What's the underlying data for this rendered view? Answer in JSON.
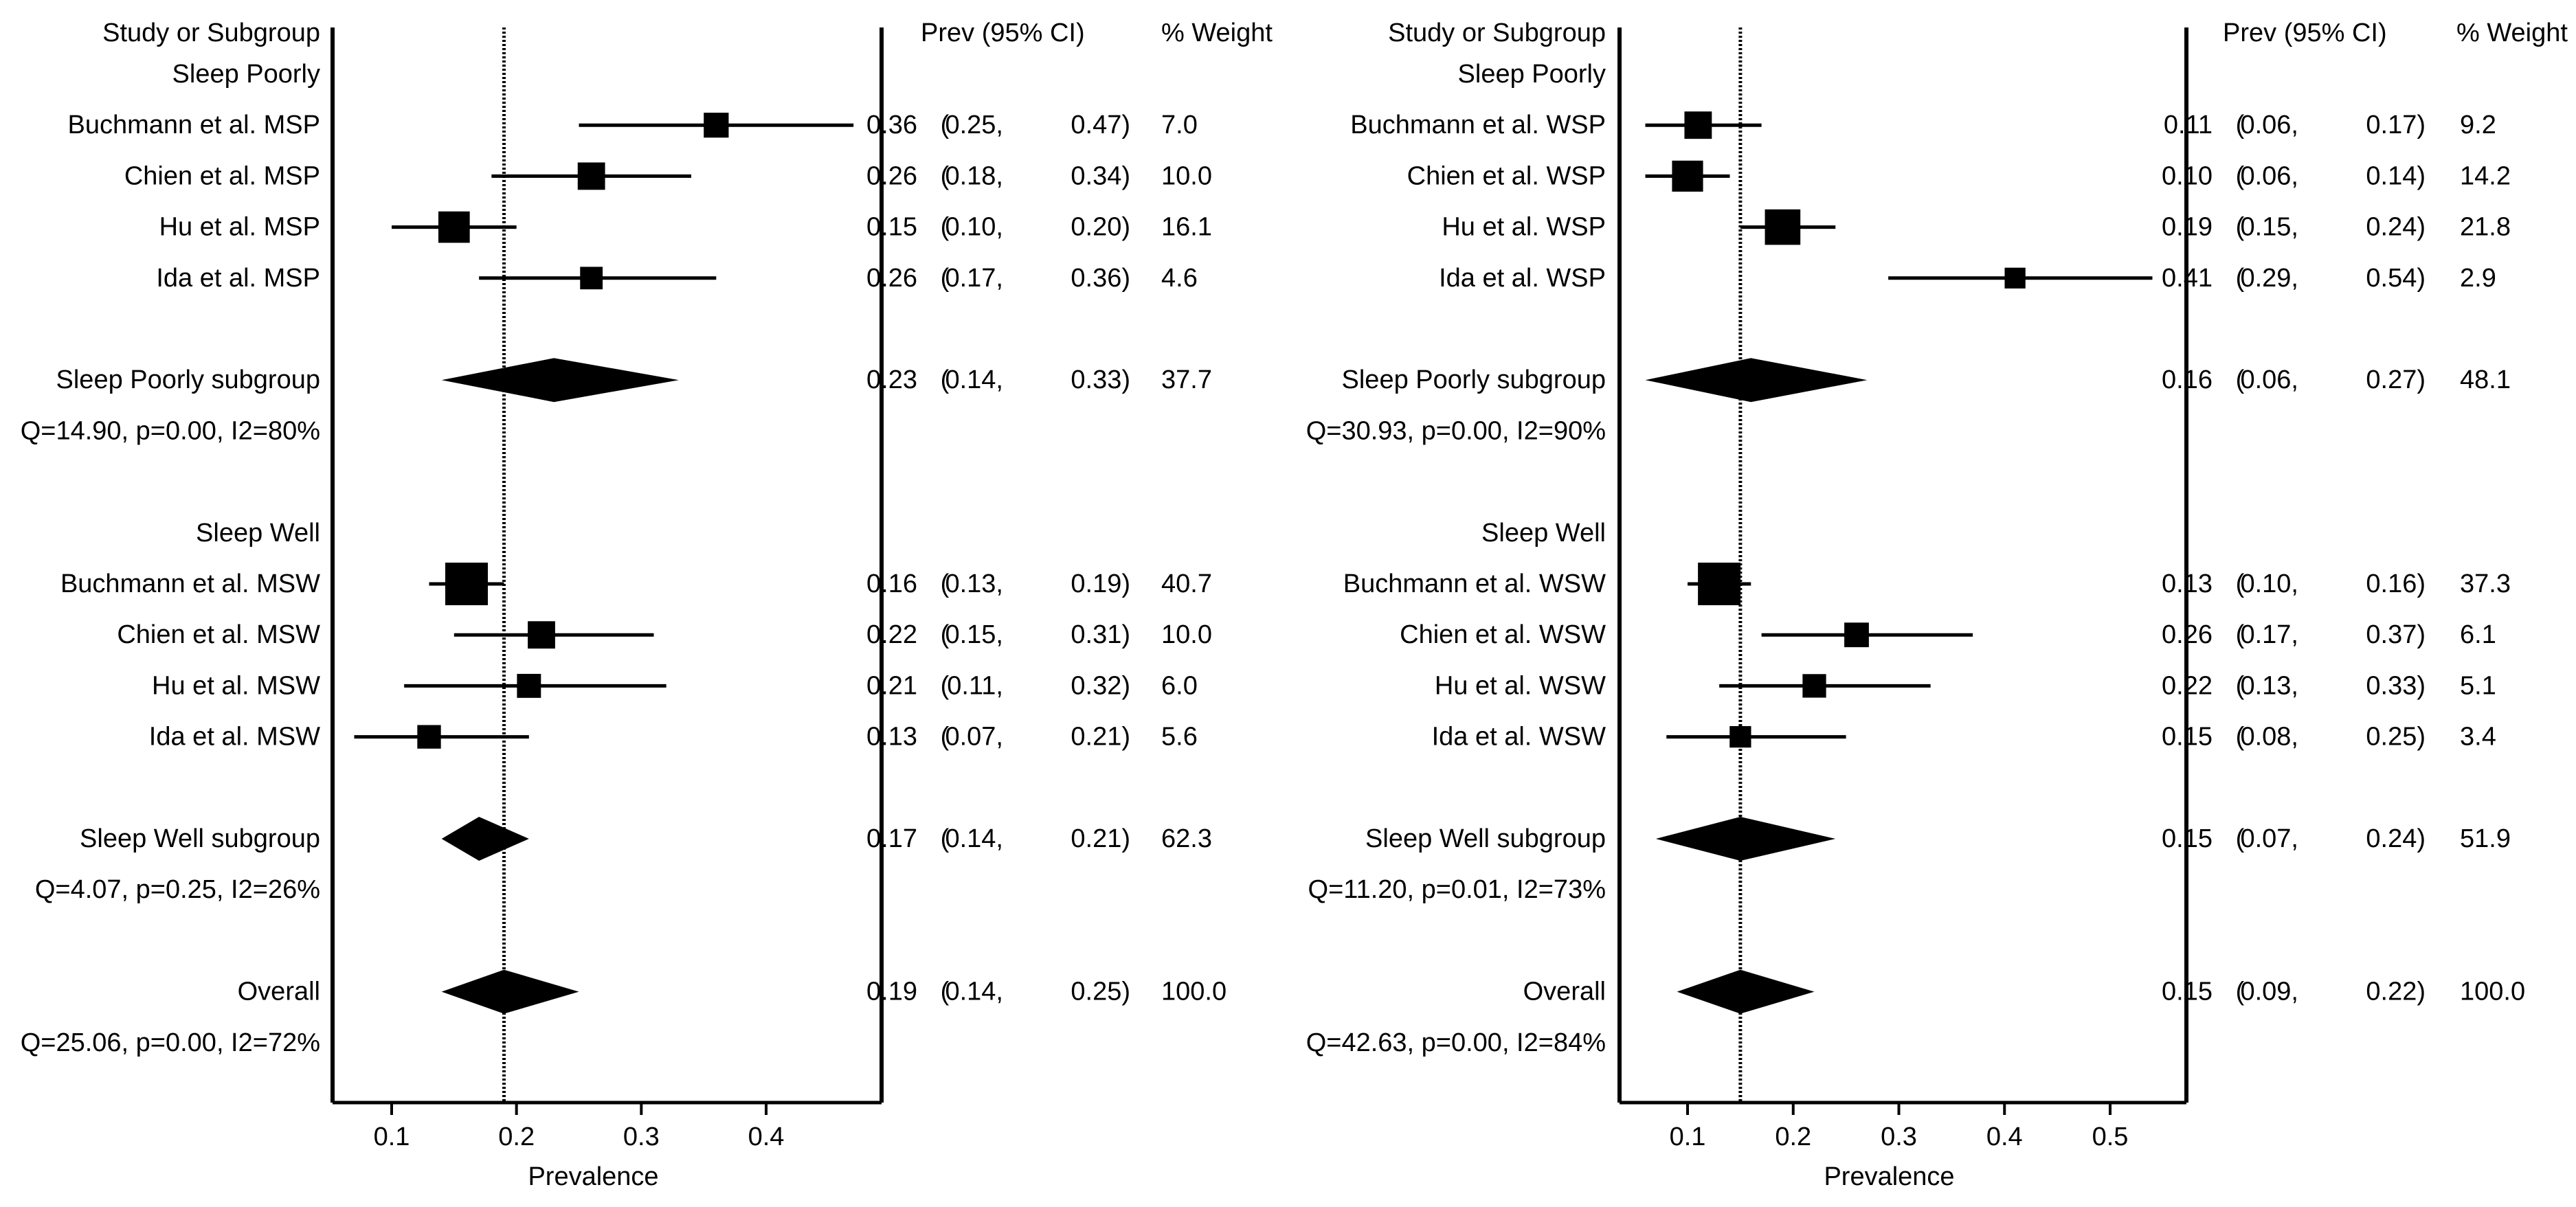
{
  "chart_data": [
    {
      "type": "forest",
      "headers": {
        "study": "Study or Subgroup",
        "estimate": "Prev (95% CI)",
        "weight": "% Weight"
      },
      "xlabel": "Prevalence",
      "xlim": [
        0.05,
        0.48
      ],
      "xticks": [
        0.1,
        0.2,
        0.3,
        0.4
      ],
      "tick_labels": [
        "0.1",
        "0.2",
        "0.3",
        "0.4"
      ],
      "reference_line": 0.19,
      "rows": [
        {
          "kind": "heading",
          "label": "Sleep Poorly"
        },
        {
          "kind": "study",
          "label": "Buchmann et al. MSP",
          "est": 0.36,
          "lo": 0.25,
          "hi": 0.47,
          "weight": 7.0,
          "est_text": "0.36",
          "lo_text": "0.25,",
          "hi_text": "0.47)",
          "weight_text": "7.0"
        },
        {
          "kind": "study",
          "label": "Chien et al. MSP",
          "est": 0.26,
          "lo": 0.18,
          "hi": 0.34,
          "weight": 10.0,
          "est_text": "0.26",
          "lo_text": "0.18,",
          "hi_text": "0.34)",
          "weight_text": "10.0"
        },
        {
          "kind": "study",
          "label": "Hu et al. MSP",
          "est": 0.15,
          "lo": 0.1,
          "hi": 0.2,
          "weight": 16.1,
          "est_text": "0.15",
          "lo_text": "0.10,",
          "hi_text": "0.20)",
          "weight_text": "16.1"
        },
        {
          "kind": "study",
          "label": "Ida et al. MSP",
          "est": 0.26,
          "lo": 0.17,
          "hi": 0.36,
          "weight": 4.6,
          "est_text": "0.26",
          "lo_text": "0.17,",
          "hi_text": "0.36)",
          "weight_text": "4.6"
        },
        {
          "kind": "blank"
        },
        {
          "kind": "summary",
          "label": "Sleep Poorly subgroup",
          "est": 0.23,
          "lo": 0.14,
          "hi": 0.33,
          "weight": 37.7,
          "est_text": "0.23",
          "lo_text": "0.14,",
          "hi_text": "0.33)",
          "weight_text": "37.7"
        },
        {
          "kind": "stat",
          "label": "Q=14.90, p=0.00, I2=80%"
        },
        {
          "kind": "blank"
        },
        {
          "kind": "heading",
          "label": "Sleep Well"
        },
        {
          "kind": "study",
          "label": "Buchmann et al. MSW",
          "est": 0.16,
          "lo": 0.13,
          "hi": 0.19,
          "weight": 40.7,
          "est_text": "0.16",
          "lo_text": "0.13,",
          "hi_text": "0.19)",
          "weight_text": "40.7"
        },
        {
          "kind": "study",
          "label": "Chien et al. MSW",
          "est": 0.22,
          "lo": 0.15,
          "hi": 0.31,
          "weight": 10.0,
          "est_text": "0.22",
          "lo_text": "0.15,",
          "hi_text": "0.31)",
          "weight_text": "10.0"
        },
        {
          "kind": "study",
          "label": "Hu et al. MSW",
          "est": 0.21,
          "lo": 0.11,
          "hi": 0.32,
          "weight": 6.0,
          "est_text": "0.21",
          "lo_text": "0.11,",
          "hi_text": "0.32)",
          "weight_text": "6.0"
        },
        {
          "kind": "study",
          "label": "Ida et al. MSW",
          "est": 0.13,
          "lo": 0.07,
          "hi": 0.21,
          "weight": 5.6,
          "est_text": "0.13",
          "lo_text": "0.07,",
          "hi_text": "0.21)",
          "weight_text": "5.6"
        },
        {
          "kind": "blank"
        },
        {
          "kind": "summary",
          "label": "Sleep Well subgroup",
          "est": 0.17,
          "lo": 0.14,
          "hi": 0.21,
          "weight": 62.3,
          "est_text": "0.17",
          "lo_text": "0.14,",
          "hi_text": "0.21)",
          "weight_text": "62.3"
        },
        {
          "kind": "stat",
          "label": "Q=4.07, p=0.25, I2=26%"
        },
        {
          "kind": "blank"
        },
        {
          "kind": "summary",
          "label": "Overall",
          "est": 0.19,
          "lo": 0.14,
          "hi": 0.25,
          "weight": 100.0,
          "est_text": "0.19",
          "lo_text": "0.14,",
          "hi_text": "0.25)",
          "weight_text": "100.0"
        },
        {
          "kind": "stat",
          "label": "Q=25.06, p=0.00, I2=72%"
        }
      ]
    },
    {
      "type": "forest",
      "headers": {
        "study": "Study or Subgroup",
        "estimate": "Prev (95% CI)",
        "weight": "% Weight"
      },
      "xlabel": "Prevalence",
      "xlim": [
        0.05,
        0.55
      ],
      "xticks": [
        0.1,
        0.2,
        0.3,
        0.4,
        0.5
      ],
      "tick_labels": [
        "0.1",
        "0.2",
        "0.3",
        "0.4",
        "0.5"
      ],
      "reference_line": 0.15,
      "rows": [
        {
          "kind": "heading",
          "label": "Sleep Poorly"
        },
        {
          "kind": "study",
          "label": "Buchmann et al. WSP",
          "est": 0.11,
          "lo": 0.06,
          "hi": 0.17,
          "weight": 9.2,
          "est_text": "0.11",
          "lo_text": "0.06,",
          "hi_text": "0.17)",
          "weight_text": "9.2"
        },
        {
          "kind": "study",
          "label": "Chien et al. WSP",
          "est": 0.1,
          "lo": 0.06,
          "hi": 0.14,
          "weight": 14.2,
          "est_text": "0.10",
          "lo_text": "0.06,",
          "hi_text": "0.14)",
          "weight_text": "14.2"
        },
        {
          "kind": "study",
          "label": "Hu et al. WSP",
          "est": 0.19,
          "lo": 0.15,
          "hi": 0.24,
          "weight": 21.8,
          "est_text": "0.19",
          "lo_text": "0.15,",
          "hi_text": "0.24)",
          "weight_text": "21.8"
        },
        {
          "kind": "study",
          "label": "Ida et al. WSP",
          "est": 0.41,
          "lo": 0.29,
          "hi": 0.54,
          "weight": 2.9,
          "est_text": "0.41",
          "lo_text": "0.29,",
          "hi_text": "0.54)",
          "weight_text": "2.9"
        },
        {
          "kind": "blank"
        },
        {
          "kind": "summary",
          "label": "Sleep Poorly subgroup",
          "est": 0.16,
          "lo": 0.06,
          "hi": 0.27,
          "weight": 48.1,
          "est_text": "0.16",
          "lo_text": "0.06,",
          "hi_text": "0.27)",
          "weight_text": "48.1"
        },
        {
          "kind": "stat",
          "label": "Q=30.93, p=0.00, I2=90%"
        },
        {
          "kind": "blank"
        },
        {
          "kind": "heading",
          "label": "Sleep Well"
        },
        {
          "kind": "study",
          "label": "Buchmann et al. WSW",
          "est": 0.13,
          "lo": 0.1,
          "hi": 0.16,
          "weight": 37.3,
          "est_text": "0.13",
          "lo_text": "0.10,",
          "hi_text": "0.16)",
          "weight_text": "37.3"
        },
        {
          "kind": "study",
          "label": "Chien et al. WSW",
          "est": 0.26,
          "lo": 0.17,
          "hi": 0.37,
          "weight": 6.1,
          "est_text": "0.26",
          "lo_text": "0.17,",
          "hi_text": "0.37)",
          "weight_text": "6.1"
        },
        {
          "kind": "study",
          "label": "Hu et al. WSW",
          "est": 0.22,
          "lo": 0.13,
          "hi": 0.33,
          "weight": 5.1,
          "est_text": "0.22",
          "lo_text": "0.13,",
          "hi_text": "0.33)",
          "weight_text": "5.1"
        },
        {
          "kind": "study",
          "label": "Ida et al. WSW",
          "est": 0.15,
          "lo": 0.08,
          "hi": 0.25,
          "weight": 3.4,
          "est_text": "0.15",
          "lo_text": "0.08,",
          "hi_text": "0.25)",
          "weight_text": "3.4"
        },
        {
          "kind": "blank"
        },
        {
          "kind": "summary",
          "label": "Sleep Well subgroup",
          "est": 0.15,
          "lo": 0.07,
          "hi": 0.24,
          "weight": 51.9,
          "est_text": "0.15",
          "lo_text": "0.07,",
          "hi_text": "0.24)",
          "weight_text": "51.9"
        },
        {
          "kind": "stat",
          "label": "Q=11.20, p=0.01, I2=73%"
        },
        {
          "kind": "blank"
        },
        {
          "kind": "summary",
          "label": "Overall",
          "est": 0.15,
          "lo": 0.09,
          "hi": 0.22,
          "weight": 100.0,
          "est_text": "0.15",
          "lo_text": "0.09,",
          "hi_text": "0.22)",
          "weight_text": "100.0"
        },
        {
          "kind": "stat",
          "label": "Q=42.63, p=0.00, I2=84%"
        }
      ]
    }
  ]
}
